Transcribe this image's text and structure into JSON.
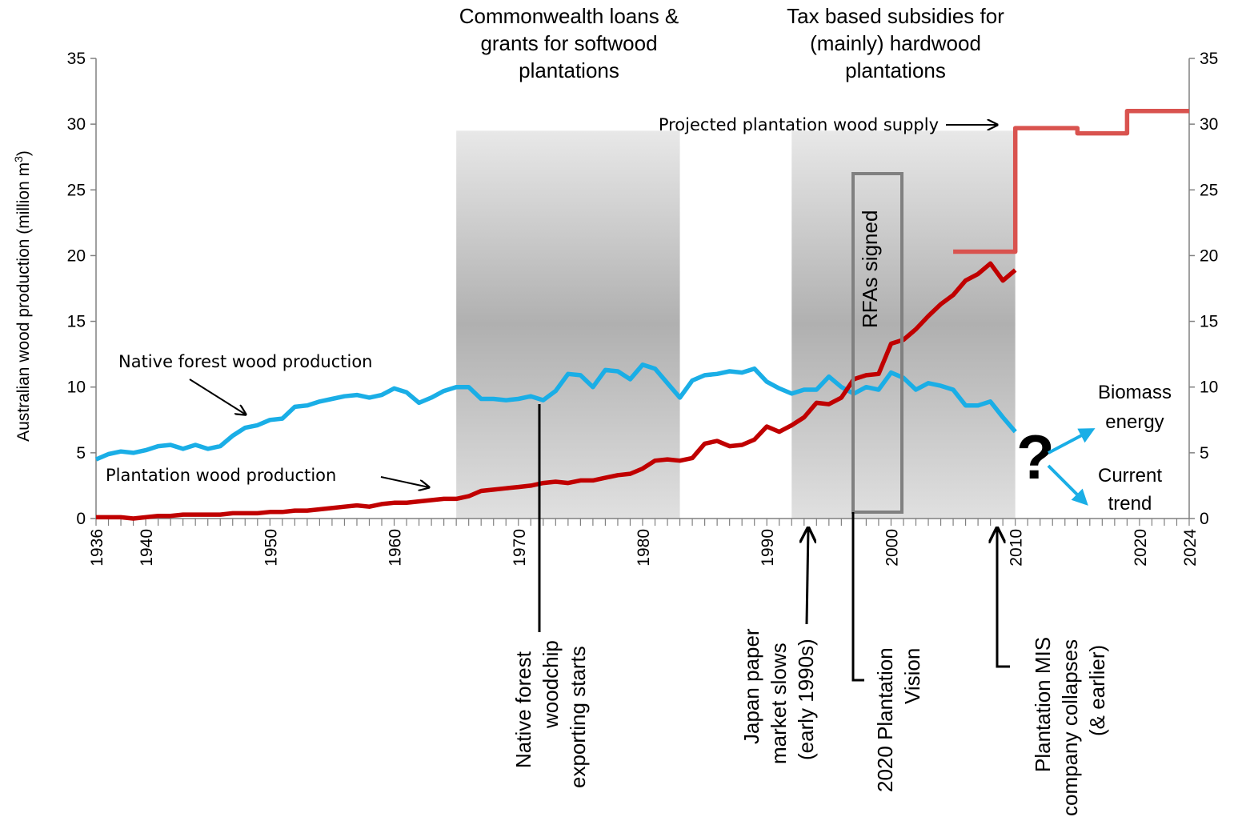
{
  "chart_data": {
    "type": "line",
    "title": "",
    "ylabel": "Australian wood production (million m",
    "ylabel_superscript": "3",
    "ylabel_suffix": ")",
    "ylim": [
      0,
      35
    ],
    "y_ticks": [
      0,
      5,
      10,
      15,
      20,
      25,
      30,
      35
    ],
    "xlim": [
      1936,
      2024
    ],
    "x_tick_labels": [
      "1936",
      "1940",
      "1950",
      "1960",
      "1970",
      "1980",
      "1990",
      "2000",
      "2010",
      "2020",
      "2024"
    ],
    "series": [
      {
        "name": "Native forest wood production",
        "color": "#1aaee6",
        "x": [
          1936,
          1937,
          1938,
          1939,
          1940,
          1941,
          1942,
          1943,
          1944,
          1945,
          1946,
          1947,
          1948,
          1949,
          1950,
          1951,
          1952,
          1953,
          1954,
          1955,
          1956,
          1957,
          1958,
          1959,
          1960,
          1961,
          1962,
          1963,
          1964,
          1965,
          1966,
          1967,
          1968,
          1969,
          1970,
          1971,
          1972,
          1973,
          1974,
          1975,
          1976,
          1977,
          1978,
          1979,
          1980,
          1981,
          1982,
          1983,
          1984,
          1985,
          1986,
          1987,
          1988,
          1989,
          1990,
          1991,
          1992,
          1993,
          1994,
          1995,
          1996,
          1997,
          1998,
          1999,
          2000,
          2001,
          2002,
          2003,
          2004,
          2005,
          2006,
          2007,
          2008,
          2009,
          2010
        ],
        "values": [
          4.5,
          4.9,
          5.1,
          5.0,
          5.2,
          5.5,
          5.6,
          5.3,
          5.6,
          5.3,
          5.5,
          6.3,
          6.9,
          7.1,
          7.5,
          7.6,
          8.5,
          8.6,
          8.9,
          9.1,
          9.3,
          9.4,
          9.2,
          9.4,
          9.9,
          9.6,
          8.8,
          9.2,
          9.7,
          10.0,
          10.0,
          9.1,
          9.1,
          9.0,
          9.1,
          9.3,
          9.0,
          9.7,
          11.0,
          10.9,
          10.0,
          11.3,
          11.2,
          10.6,
          11.7,
          11.4,
          10.3,
          9.2,
          10.5,
          10.9,
          11.0,
          11.2,
          11.1,
          11.4,
          10.4,
          9.9,
          9.5,
          9.8,
          9.8,
          10.8,
          10.0,
          9.5,
          10.0,
          9.8,
          11.1,
          10.7,
          9.8,
          10.3,
          10.1,
          9.8,
          8.6,
          8.6,
          8.9,
          7.7,
          6.6
        ]
      },
      {
        "name": "Plantation wood production",
        "color": "#c00000",
        "x": [
          1936,
          1937,
          1938,
          1939,
          1940,
          1941,
          1942,
          1943,
          1944,
          1945,
          1946,
          1947,
          1948,
          1949,
          1950,
          1951,
          1952,
          1953,
          1954,
          1955,
          1956,
          1957,
          1958,
          1959,
          1960,
          1961,
          1962,
          1963,
          1964,
          1965,
          1966,
          1967,
          1968,
          1969,
          1970,
          1971,
          1972,
          1973,
          1974,
          1975,
          1976,
          1977,
          1978,
          1979,
          1980,
          1981,
          1982,
          1983,
          1984,
          1985,
          1986,
          1987,
          1988,
          1989,
          1990,
          1991,
          1992,
          1993,
          1994,
          1995,
          1996,
          1997,
          1998,
          1999,
          2000,
          2001,
          2002,
          2003,
          2004,
          2005,
          2006,
          2007,
          2008,
          2009,
          2010
        ],
        "values": [
          0.1,
          0.1,
          0.1,
          0.0,
          0.1,
          0.2,
          0.2,
          0.3,
          0.3,
          0.3,
          0.3,
          0.4,
          0.4,
          0.4,
          0.5,
          0.5,
          0.6,
          0.6,
          0.7,
          0.8,
          0.9,
          1.0,
          0.9,
          1.1,
          1.2,
          1.2,
          1.3,
          1.4,
          1.5,
          1.5,
          1.7,
          2.1,
          2.2,
          2.3,
          2.4,
          2.5,
          2.7,
          2.8,
          2.7,
          2.9,
          2.9,
          3.1,
          3.3,
          3.4,
          3.8,
          4.4,
          4.5,
          4.4,
          4.6,
          5.7,
          5.9,
          5.5,
          5.6,
          6.0,
          7.0,
          6.6,
          7.1,
          7.7,
          8.8,
          8.7,
          9.2,
          10.6,
          10.9,
          11.0,
          13.3,
          13.6,
          14.4,
          15.4,
          16.3,
          17.0,
          18.1,
          18.6,
          19.4,
          18.1,
          18.9
        ]
      },
      {
        "name": "Projected plantation wood supply",
        "color": "#d9534f",
        "step": true,
        "x": [
          2005,
          2010,
          2010,
          2015,
          2015,
          2019,
          2019,
          2024
        ],
        "values": [
          20.3,
          20.3,
          29.7,
          29.7,
          29.3,
          29.3,
          31.0,
          31.0
        ]
      }
    ],
    "shaded_periods": [
      {
        "start": 1965,
        "end": 1983
      },
      {
        "start": 1992,
        "end": 2010
      }
    ],
    "annotations": {
      "commonwealth": [
        "Commonwealth loans &",
        "grants for softwood",
        "plantations"
      ],
      "tax": [
        "Tax based subsidies for",
        "(mainly) hardwood",
        "plantations"
      ],
      "projected": "Projected plantation wood supply",
      "native_label": "Native forest wood production",
      "plantation_label": "Plantation wood production",
      "rfas": "RFAs signed",
      "woodchip": [
        "Native forest",
        "woodchip",
        "exporting starts"
      ],
      "japan": [
        "Japan paper",
        "market slows",
        "(early 1990s)"
      ],
      "vision": [
        "2020 Plantation",
        "Vision"
      ],
      "mis": [
        "Plantation MIS",
        "company collapses",
        "(& earlier)"
      ],
      "question": "?",
      "biomass": [
        "Biomass",
        "energy"
      ],
      "current": [
        "Current",
        "trend"
      ]
    }
  }
}
